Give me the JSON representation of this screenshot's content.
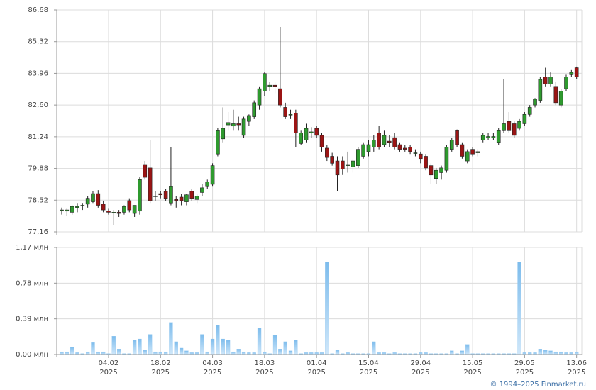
{
  "chart_data": [
    {
      "type": "candlestick",
      "x": [
        "2025-01-22",
        "2025-01-23",
        "2025-01-24",
        "2025-01-27",
        "2025-01-28",
        "2025-01-29",
        "2025-01-30",
        "2025-01-31",
        "2025-02-03",
        "2025-02-04",
        "2025-02-05",
        "2025-02-06",
        "2025-02-07",
        "2025-02-10",
        "2025-02-11",
        "2025-02-12",
        "2025-02-13",
        "2025-02-14",
        "2025-02-17",
        "2025-02-18",
        "2025-02-19",
        "2025-02-20",
        "2025-02-21",
        "2025-02-24",
        "2025-02-25",
        "2025-02-26",
        "2025-02-27",
        "2025-02-28",
        "2025-03-03",
        "2025-03-04",
        "2025-03-05",
        "2025-03-06",
        "2025-03-07",
        "2025-03-10",
        "2025-03-11",
        "2025-03-12",
        "2025-03-13",
        "2025-03-14",
        "2025-03-17",
        "2025-03-18",
        "2025-03-19",
        "2025-03-20",
        "2025-03-21",
        "2025-03-24",
        "2025-03-25",
        "2025-03-26",
        "2025-03-27",
        "2025-03-28",
        "2025-03-31",
        "2025-04-01",
        "2025-04-02",
        "2025-04-03",
        "2025-04-04",
        "2025-04-07",
        "2025-04-08",
        "2025-04-09",
        "2025-04-10",
        "2025-04-11",
        "2025-04-14",
        "2025-04-15",
        "2025-04-16",
        "2025-04-17",
        "2025-04-18",
        "2025-04-21",
        "2025-04-22",
        "2025-04-23",
        "2025-04-24",
        "2025-04-25",
        "2025-04-28",
        "2025-04-29",
        "2025-04-30",
        "2025-05-02",
        "2025-05-05",
        "2025-05-06",
        "2025-05-07",
        "2025-05-08",
        "2025-05-12",
        "2025-05-13",
        "2025-05-14",
        "2025-05-15",
        "2025-05-16",
        "2025-05-19",
        "2025-05-20",
        "2025-05-21",
        "2025-05-22",
        "2025-05-23",
        "2025-05-26",
        "2025-05-27",
        "2025-05-28",
        "2025-05-29",
        "2025-05-30",
        "2025-06-02",
        "2025-06-03",
        "2025-06-04",
        "2025-06-05",
        "2025-06-06",
        "2025-06-09",
        "2025-06-10",
        "2025-06-11",
        "2025-06-13"
      ],
      "open": [
        78.1,
        78.05,
        78.0,
        78.2,
        78.3,
        78.35,
        78.45,
        78.8,
        78.35,
        78.05,
        78.0,
        78.0,
        78.0,
        78.5,
        77.95,
        78.05,
        80.05,
        79.9,
        78.7,
        78.8,
        78.9,
        78.4,
        78.55,
        78.65,
        78.45,
        78.9,
        78.55,
        78.85,
        79.1,
        79.2,
        80.5,
        81.15,
        81.75,
        81.7,
        81.8,
        81.3,
        81.9,
        82.1,
        82.6,
        83.2,
        83.4,
        83.45,
        83.3,
        82.5,
        82.2,
        82.25,
        80.95,
        81.1,
        81.4,
        81.6,
        81.3,
        80.75,
        80.4,
        80.2,
        80.2,
        80.0,
        79.95,
        80.0,
        80.4,
        80.6,
        80.8,
        81.4,
        80.9,
        81.05,
        81.2,
        80.9,
        80.75,
        80.8,
        80.55,
        80.5,
        80.4,
        80.0,
        79.45,
        79.7,
        79.8,
        80.7,
        81.5,
        80.9,
        80.2,
        80.7,
        80.55,
        81.1,
        81.2,
        81.2,
        81.0,
        81.5,
        81.9,
        81.8,
        81.6,
        81.8,
        82.2,
        82.6,
        82.8,
        83.8,
        83.5,
        83.4,
        82.6,
        83.3,
        83.9,
        84.2
      ],
      "high": [
        78.2,
        78.15,
        78.3,
        78.4,
        78.4,
        78.7,
        78.9,
        78.95,
        78.5,
        78.15,
        78.1,
        78.1,
        78.3,
        78.6,
        78.3,
        79.5,
        80.2,
        81.1,
        78.9,
        78.9,
        79.0,
        80.8,
        78.7,
        78.8,
        78.8,
        79.0,
        78.8,
        79.2,
        79.4,
        80.1,
        81.6,
        82.5,
        82.3,
        82.4,
        82.1,
        82.1,
        82.2,
        82.8,
        83.4,
        84.0,
        83.6,
        83.6,
        85.95,
        82.7,
        82.4,
        82.4,
        81.5,
        81.8,
        81.65,
        81.7,
        81.4,
        80.9,
        80.55,
        80.4,
        80.4,
        80.6,
        80.3,
        80.8,
        81.0,
        81.1,
        81.3,
        81.7,
        81.5,
        81.3,
        81.4,
        81.0,
        80.9,
        80.9,
        80.7,
        80.6,
        80.5,
        80.1,
        79.9,
        80.0,
        80.9,
        81.2,
        81.55,
        81.0,
        80.7,
        80.8,
        80.7,
        81.4,
        81.4,
        81.4,
        81.6,
        83.7,
        82.3,
        81.9,
        82.0,
        82.3,
        82.6,
        82.9,
        83.8,
        84.2,
        84.0,
        83.6,
        83.3,
        83.9,
        84.1,
        84.25
      ],
      "low": [
        77.9,
        77.85,
        77.9,
        78.0,
        78.1,
        78.2,
        78.4,
        78.2,
        78.0,
        77.9,
        77.45,
        77.8,
        77.9,
        78.0,
        77.8,
        77.9,
        79.4,
        78.4,
        78.5,
        78.6,
        78.5,
        78.3,
        78.2,
        78.3,
        78.3,
        78.5,
        78.4,
        78.7,
        79.0,
        79.1,
        80.4,
        81.0,
        81.5,
        81.5,
        81.5,
        81.2,
        81.7,
        82.0,
        82.4,
        83.0,
        83.2,
        83.1,
        82.5,
        82.0,
        82.0,
        80.8,
        80.9,
        81.0,
        81.2,
        81.2,
        80.6,
        80.2,
        80.0,
        78.9,
        79.6,
        79.7,
        79.7,
        79.9,
        80.3,
        80.4,
        80.6,
        80.7,
        80.8,
        80.8,
        80.7,
        80.6,
        80.6,
        80.5,
        80.4,
        80.1,
        79.8,
        79.2,
        79.2,
        79.4,
        79.7,
        80.6,
        80.8,
        80.3,
        80.1,
        80.4,
        80.4,
        81.0,
        81.1,
        81.1,
        80.9,
        81.4,
        81.4,
        81.2,
        81.5,
        81.7,
        82.1,
        82.5,
        82.7,
        83.4,
        83.4,
        82.6,
        82.5,
        83.2,
        83.8,
        83.7
      ],
      "close": [
        78.1,
        78.1,
        78.25,
        78.25,
        78.3,
        78.6,
        78.8,
        78.3,
        78.1,
        78.0,
        78.0,
        77.95,
        78.25,
        78.1,
        78.3,
        79.4,
        79.5,
        78.5,
        78.7,
        78.75,
        78.6,
        79.1,
        78.5,
        78.5,
        78.75,
        78.6,
        78.7,
        79.05,
        79.3,
        80.0,
        81.5,
        81.6,
        81.85,
        81.8,
        81.75,
        82.0,
        82.15,
        82.7,
        83.3,
        83.95,
        83.45,
        83.4,
        82.6,
        82.1,
        82.2,
        81.4,
        81.4,
        81.6,
        81.45,
        81.3,
        80.8,
        80.35,
        80.1,
        79.6,
        79.85,
        80.05,
        80.2,
        80.7,
        80.9,
        80.9,
        81.1,
        80.8,
        81.3,
        81.0,
        80.8,
        80.7,
        80.7,
        80.6,
        80.55,
        80.3,
        79.9,
        79.6,
        79.8,
        79.9,
        80.8,
        81.1,
        80.9,
        80.4,
        80.6,
        80.5,
        80.6,
        81.3,
        81.25,
        81.25,
        81.5,
        81.8,
        81.5,
        81.3,
        81.9,
        82.2,
        82.5,
        82.85,
        83.7,
        83.5,
        83.8,
        82.7,
        83.2,
        83.8,
        84.0,
        83.8
      ],
      "up_color": "#2e9a2e",
      "down_color": "#9b1414",
      "ylim": [
        77.16,
        86.68
      ],
      "yticks": [
        {
          "value": 77.16,
          "label": "77,16"
        },
        {
          "value": 78.52,
          "label": "78,52"
        },
        {
          "value": 79.88,
          "label": "79,88"
        },
        {
          "value": 81.24,
          "label": "81,24"
        },
        {
          "value": 82.6,
          "label": "82,60"
        },
        {
          "value": 83.96,
          "label": "83,96"
        },
        {
          "value": 85.32,
          "label": "85,32"
        },
        {
          "value": 86.68,
          "label": "86,68"
        }
      ],
      "grid": true
    },
    {
      "type": "bar",
      "x": [
        "2025-01-22",
        "2025-01-23",
        "2025-01-24",
        "2025-01-27",
        "2025-01-28",
        "2025-01-29",
        "2025-01-30",
        "2025-01-31",
        "2025-02-03",
        "2025-02-04",
        "2025-02-05",
        "2025-02-06",
        "2025-02-07",
        "2025-02-10",
        "2025-02-11",
        "2025-02-12",
        "2025-02-13",
        "2025-02-14",
        "2025-02-17",
        "2025-02-18",
        "2025-02-19",
        "2025-02-20",
        "2025-02-21",
        "2025-02-24",
        "2025-02-25",
        "2025-02-26",
        "2025-02-27",
        "2025-02-28",
        "2025-03-03",
        "2025-03-04",
        "2025-03-05",
        "2025-03-06",
        "2025-03-07",
        "2025-03-10",
        "2025-03-11",
        "2025-03-12",
        "2025-03-13",
        "2025-03-14",
        "2025-03-17",
        "2025-03-18",
        "2025-03-19",
        "2025-03-20",
        "2025-03-21",
        "2025-03-24",
        "2025-03-25",
        "2025-03-26",
        "2025-03-27",
        "2025-03-28",
        "2025-03-31",
        "2025-04-01",
        "2025-04-02",
        "2025-04-03",
        "2025-04-04",
        "2025-04-07",
        "2025-04-08",
        "2025-04-09",
        "2025-04-10",
        "2025-04-11",
        "2025-04-14",
        "2025-04-15",
        "2025-04-16",
        "2025-04-17",
        "2025-04-18",
        "2025-04-21",
        "2025-04-22",
        "2025-04-23",
        "2025-04-24",
        "2025-04-25",
        "2025-04-28",
        "2025-04-29",
        "2025-04-30",
        "2025-05-02",
        "2025-05-05",
        "2025-05-06",
        "2025-05-07",
        "2025-05-08",
        "2025-05-12",
        "2025-05-13",
        "2025-05-14",
        "2025-05-15",
        "2025-05-16",
        "2025-05-19",
        "2025-05-20",
        "2025-05-21",
        "2025-05-22",
        "2025-05-23",
        "2025-05-26",
        "2025-05-27",
        "2025-05-28",
        "2025-05-29",
        "2025-05-30",
        "2025-06-02",
        "2025-06-03",
        "2025-06-04",
        "2025-06-05",
        "2025-06-06",
        "2025-06-09",
        "2025-06-10",
        "2025-06-11",
        "2025-06-13"
      ],
      "values": [
        0.03,
        0.03,
        0.08,
        0.02,
        0.01,
        0.03,
        0.13,
        0.03,
        0.03,
        0.01,
        0.2,
        0.06,
        0.01,
        0.01,
        0.16,
        0.17,
        0.05,
        0.22,
        0.03,
        0.03,
        0.03,
        0.35,
        0.14,
        0.07,
        0.04,
        0.02,
        0.02,
        0.22,
        0.03,
        0.17,
        0.32,
        0.17,
        0.16,
        0.03,
        0.06,
        0.03,
        0.02,
        0.02,
        0.29,
        0.03,
        0.01,
        0.21,
        0.06,
        0.14,
        0.04,
        0.16,
        0.01,
        0.02,
        0.02,
        0.02,
        0.02,
        1.01,
        0.01,
        0.05,
        0.01,
        0.02,
        0.01,
        0.01,
        0.01,
        0.01,
        0.14,
        0.02,
        0.02,
        0.01,
        0.02,
        0.01,
        0.01,
        0.01,
        0.01,
        0.02,
        0.02,
        0.01,
        0.01,
        0.01,
        0.01,
        0.04,
        0.01,
        0.04,
        0.11,
        0.01,
        0.01,
        0.01,
        0.01,
        0.01,
        0.01,
        0.01,
        0.01,
        0.01,
        1.01,
        0.02,
        0.02,
        0.02,
        0.06,
        0.05,
        0.04,
        0.03,
        0.03,
        0.02,
        0.02,
        0.03
      ],
      "color": "#8cc4ee",
      "ylim": [
        0,
        1.17
      ],
      "yticks": [
        {
          "value": 0,
          "label": "0,00 млн"
        },
        {
          "value": 0.39,
          "label": "0,39 млн"
        },
        {
          "value": 0.78,
          "label": "0,78 млн"
        },
        {
          "value": 1.17,
          "label": "1,17 млн"
        }
      ],
      "xticks": [
        {
          "value": "2025-02-04",
          "label": [
            "04.02",
            "2025"
          ]
        },
        {
          "value": "2025-02-18",
          "label": [
            "18.02",
            "2025"
          ]
        },
        {
          "value": "2025-03-04",
          "label": [
            "04.03",
            "2025"
          ]
        },
        {
          "value": "2025-03-18",
          "label": [
            "18.03",
            "2025"
          ]
        },
        {
          "value": "2025-04-01",
          "label": [
            "01.04",
            "2025"
          ]
        },
        {
          "value": "2025-04-15",
          "label": [
            "15.04",
            "2025"
          ]
        },
        {
          "value": "2025-04-29",
          "label": [
            "29.04",
            "2025"
          ]
        },
        {
          "value": "2025-05-15",
          "label": [
            "15.05",
            "2025"
          ]
        },
        {
          "value": "2025-05-29",
          "label": [
            "29.05",
            "2025"
          ]
        },
        {
          "value": "2025-06-13",
          "label": [
            "13.06",
            "2025"
          ]
        }
      ],
      "grid": true
    }
  ],
  "credit": "© 1994–2025 Finmarket.ru"
}
